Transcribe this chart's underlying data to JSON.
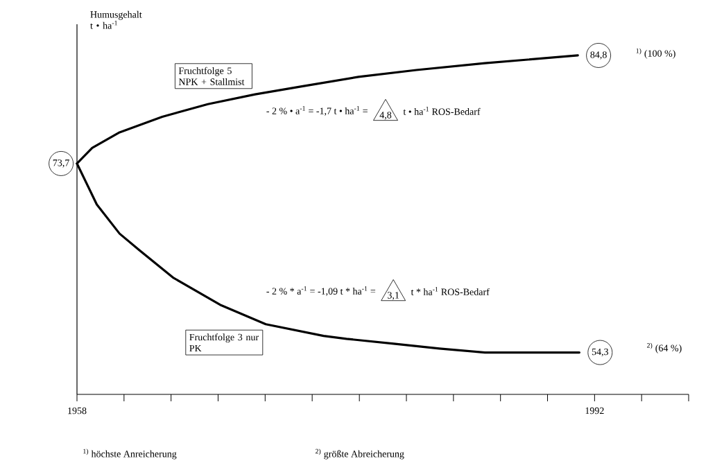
{
  "chart_data": {
    "type": "line",
    "ylim": [
      50,
      88
    ],
    "ylabel": "Humusgehalt t • ha$^{-1}$",
    "xlim": [
      1958,
      1998.18
    ],
    "xticks": [
      1958,
      {
        "value": 1961.09,
        "label": null
      },
      {
        "value": 1964.18,
        "label": null
      },
      {
        "value": 1967.27,
        "label": null
      },
      {
        "value": 1970.36,
        "label": null
      },
      {
        "value": 1973.45,
        "label": null
      },
      {
        "value": 1976.55,
        "label": null
      },
      {
        "value": 1979.64,
        "label": null
      },
      {
        "value": 1982.73,
        "label": null
      },
      {
        "value": 1985.82,
        "label": null
      },
      {
        "value": 1988.91,
        "label": null
      },
      1992,
      {
        "value": 1995.09,
        "label": null
      },
      {
        "value": 1998.18,
        "label": null
      }
    ],
    "series": [
      {
        "name": "Fruchtfolge 5 NPK + Stallmist",
        "color": "#000000",
        "x": [
          1958.0,
          1959.0,
          1960.8,
          1963.6,
          1966.6,
          1969.7,
          1972.7,
          1976.5,
          1980.3,
          1984.8,
          1990.9
        ],
        "values": [
          73.7,
          75.3,
          76.9,
          78.5,
          79.8,
          80.8,
          81.6,
          82.6,
          83.3,
          84.0,
          84.8
        ],
        "value_labels": [
          "73,7",
          null,
          null,
          null,
          null,
          null,
          null,
          null,
          null,
          null,
          "84,8"
        ]
      },
      {
        "name": "Fruchtfolge 3 nur PK",
        "color": "#000000",
        "x": [
          1958.0,
          1959.3,
          1960.8,
          1962.1,
          1964.3,
          1967.4,
          1970.4,
          1974.2,
          1975.7,
          1978.8,
          1981.8,
          1984.8,
          1991.0
        ],
        "values": [
          73.7,
          69.5,
          66.5,
          64.8,
          62.0,
          59.2,
          57.2,
          56.0,
          55.7,
          55.2,
          54.7,
          54.3,
          54.3
        ],
        "value_labels": [
          null,
          null,
          null,
          null,
          null,
          null,
          null,
          null,
          null,
          null,
          null,
          null,
          "54,3"
        ]
      }
    ],
    "annotations": [
      "- 2 % • a$^{-1}$ = -1,7 t • ha$^{-1}$ =",
      "4,8",
      "t • ha$^{-1}$ ROS-Bedarf",
      "- 2 % * a$^{-1}$ = -1,09 t * ha$^{-1}$ =",
      "3,1",
      "t * ha$^{-1}$ ROS-Bedarf",
      "$^{1)}$ (100 %)",
      "$^{2)}$ (64 %)",
      "$^{1)}$ höchste Anreicherung",
      "$^{2)}$ größte Abreicherung"
    ]
  }
}
